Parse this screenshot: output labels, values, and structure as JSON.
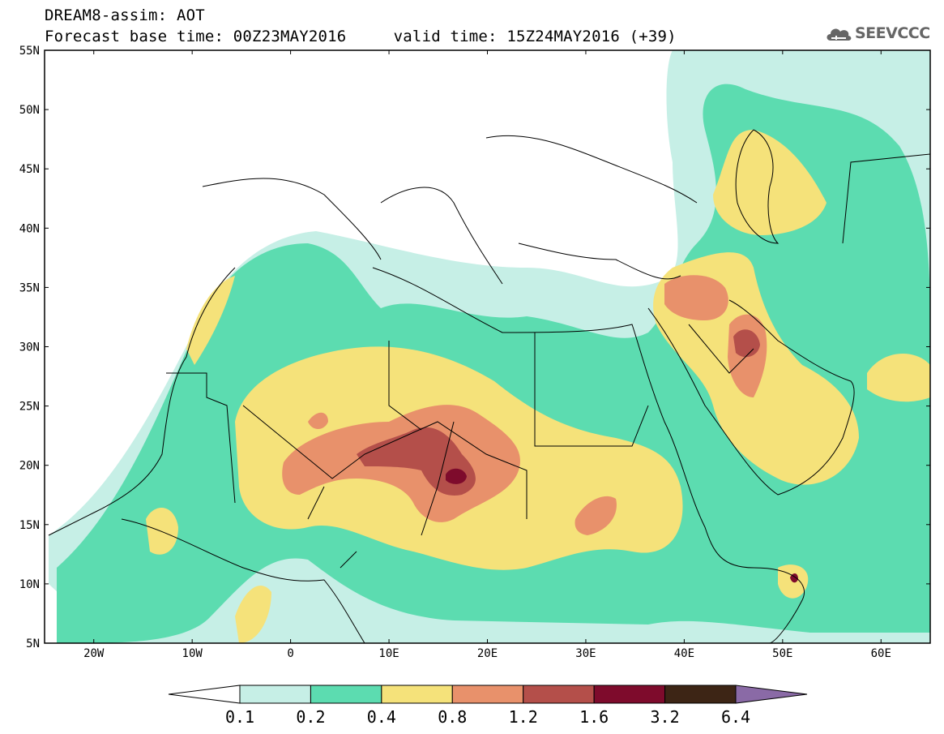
{
  "header": {
    "title": "DREAM8-assim: AOT",
    "base_time_label": "Forecast base time: 00Z23MAY2016",
    "valid_time_label": "valid time: 15Z24MAY2016 (+39)",
    "logo_text": "SEEVCCC"
  },
  "map": {
    "lon_labels": [
      "20W",
      "10W",
      "0",
      "10E",
      "20E",
      "30E",
      "40E",
      "50E",
      "60E"
    ],
    "lat_labels": [
      "55N",
      "50N",
      "45N",
      "40N",
      "35N",
      "30N",
      "25N",
      "20N",
      "15N",
      "10N",
      "5N"
    ],
    "lon_range": [
      -25,
      65
    ],
    "lat_range": [
      5,
      55
    ]
  },
  "colorbar": {
    "levels": [
      "0.1",
      "0.2",
      "0.4",
      "0.8",
      "1.2",
      "1.6",
      "3.2",
      "6.4"
    ],
    "colors": [
      "#ffffff",
      "#c6efe6",
      "#5cdcb0",
      "#f5e27a",
      "#e8916b",
      "#b44f4a",
      "#7e0b2c",
      "#3d2515",
      "#8a6aa6"
    ]
  },
  "colors": {
    "lightest": "#c6efe6",
    "teal": "#5cdcb0",
    "yellow": "#f5e27a",
    "orange": "#e8916b",
    "red": "#b44f4a",
    "darkred": "#7e0b2c"
  }
}
